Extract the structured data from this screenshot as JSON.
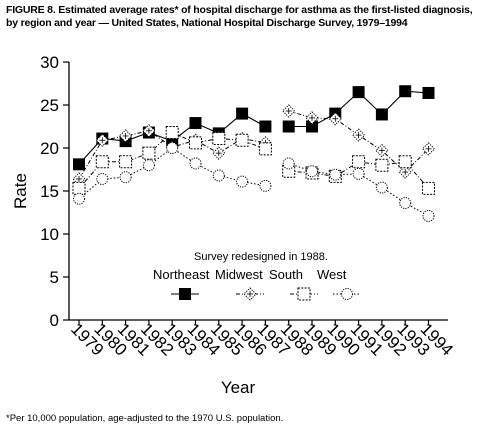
{
  "chart_data": {
    "type": "line",
    "title": "FIGURE 8. Estimated average rates* of hospital discharge for asthma as the first-listed diagnosis, by region and year — United States, National Hospital Discharge Survey, 1979–1994",
    "xlabel": "Year",
    "ylabel": "Rate",
    "ylim": [
      0,
      30
    ],
    "yticks": [
      "0",
      "5",
      "10",
      "15",
      "20",
      "25",
      "30"
    ],
    "categories": [
      "1979",
      "1980",
      "1981",
      "1982",
      "1983",
      "1984",
      "1985",
      "1986",
      "1987",
      "1988",
      "1989",
      "1990",
      "1991",
      "1992",
      "1993",
      "1994"
    ],
    "annotation": "Survey redesigned in 1988.",
    "legend_position": "center",
    "segment_break_after": "1987",
    "grid": false,
    "series": [
      {
        "name": "Northeast",
        "marker": "filled-square",
        "line": "solid",
        "values": [
          18.1,
          21.1,
          20.8,
          21.8,
          20.8,
          22.9,
          21.7,
          24.0,
          22.5,
          22.5,
          22.5,
          24.0,
          26.5,
          23.9,
          26.6,
          26.4
        ]
      },
      {
        "name": "Midwest",
        "marker": "dotted-diamond",
        "line": "dash-dot",
        "values": [
          16.4,
          20.9,
          21.4,
          22.0,
          20.1,
          20.9,
          19.4,
          21.1,
          20.6,
          24.3,
          23.5,
          23.4,
          21.5,
          19.7,
          17.2,
          19.9
        ]
      },
      {
        "name": "South",
        "marker": "dashed-square",
        "line": "dash-dot",
        "values": [
          15.3,
          18.4,
          18.4,
          19.4,
          21.8,
          20.6,
          21.1,
          20.9,
          19.9,
          17.3,
          17.1,
          16.7,
          18.4,
          18.0,
          18.4,
          15.3
        ]
      },
      {
        "name": "West",
        "marker": "dotted-circle",
        "line": "dotted",
        "values": [
          14.1,
          16.4,
          16.6,
          18.0,
          20.0,
          18.2,
          16.8,
          16.1,
          15.6,
          18.2,
          17.3,
          16.9,
          17.0,
          15.4,
          13.6,
          12.1
        ]
      }
    ]
  },
  "footnote": "*Per 10,000 population, age-adjusted to the 1970 U.S. population."
}
